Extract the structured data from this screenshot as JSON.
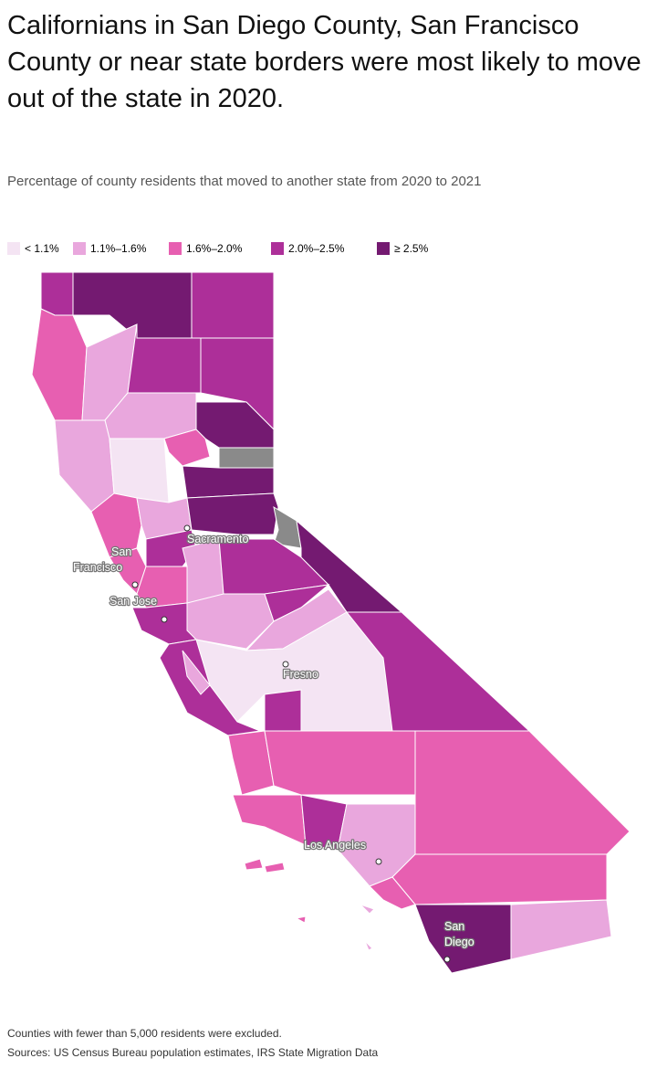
{
  "header": {
    "title": "Californians in San Diego County, San Francisco County or near state borders were most likely to move out of the state in 2020.",
    "subtitle": "Percentage of county residents that moved to another state from 2020 to 2021"
  },
  "legend": [
    {
      "label": "< 1.1%",
      "color": "#f4e4f3"
    },
    {
      "label": "1.1%–1.6%",
      "color": "#e9a7dd"
    },
    {
      "label": "1.6%–2.0%",
      "color": "#e75fb1"
    },
    {
      "label": "2.0%–2.5%",
      "color": "#ad2f99"
    },
    {
      "label": "≥ 2.5%",
      "color": "#741a71"
    }
  ],
  "cities": [
    {
      "lines": [
        "Sacramento"
      ]
    },
    {
      "lines": [
        "San",
        "Francisco"
      ]
    },
    {
      "lines": [
        "San Jose"
      ]
    },
    {
      "lines": [
        "Fresno"
      ]
    },
    {
      "lines": [
        "Los Angeles"
      ]
    },
    {
      "lines": [
        "San",
        "Diego"
      ]
    }
  ],
  "footer": {
    "note": "Counties with fewer than 5,000 residents were excluded.",
    "source": "Sources: US Census Bureau population estimates, IRS State Migration Data"
  }
}
